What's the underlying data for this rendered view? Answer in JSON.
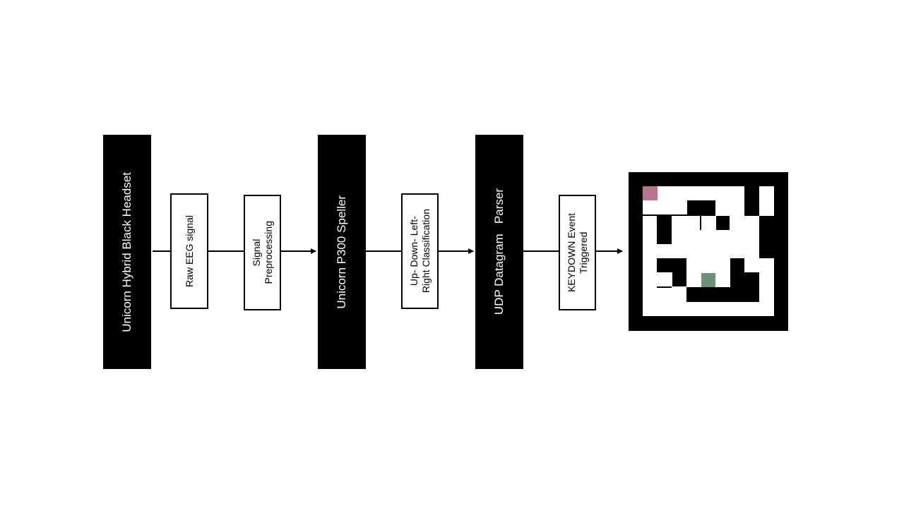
{
  "diagram": {
    "stages": [
      {
        "id": "headset",
        "label": "Unicorn Hybrid  Black Headset"
      },
      {
        "id": "raw",
        "label": "Raw EEG signal"
      },
      {
        "id": "preproc",
        "label": "Signal\nPreprocessing"
      },
      {
        "id": "speller",
        "label": "Unicorn P300 Speller"
      },
      {
        "id": "classify",
        "label": "Up- Down- Left-\nRight Classification"
      },
      {
        "id": "parser",
        "label": "UDP Datagram   Parser"
      },
      {
        "id": "keydown",
        "label": "KEYDOWN Event\nTriggered"
      }
    ],
    "maze": {
      "wall_color": "#000000",
      "path_color": "#ffffff",
      "start_color": "#b97490",
      "goal_color": "#6a9373"
    }
  }
}
